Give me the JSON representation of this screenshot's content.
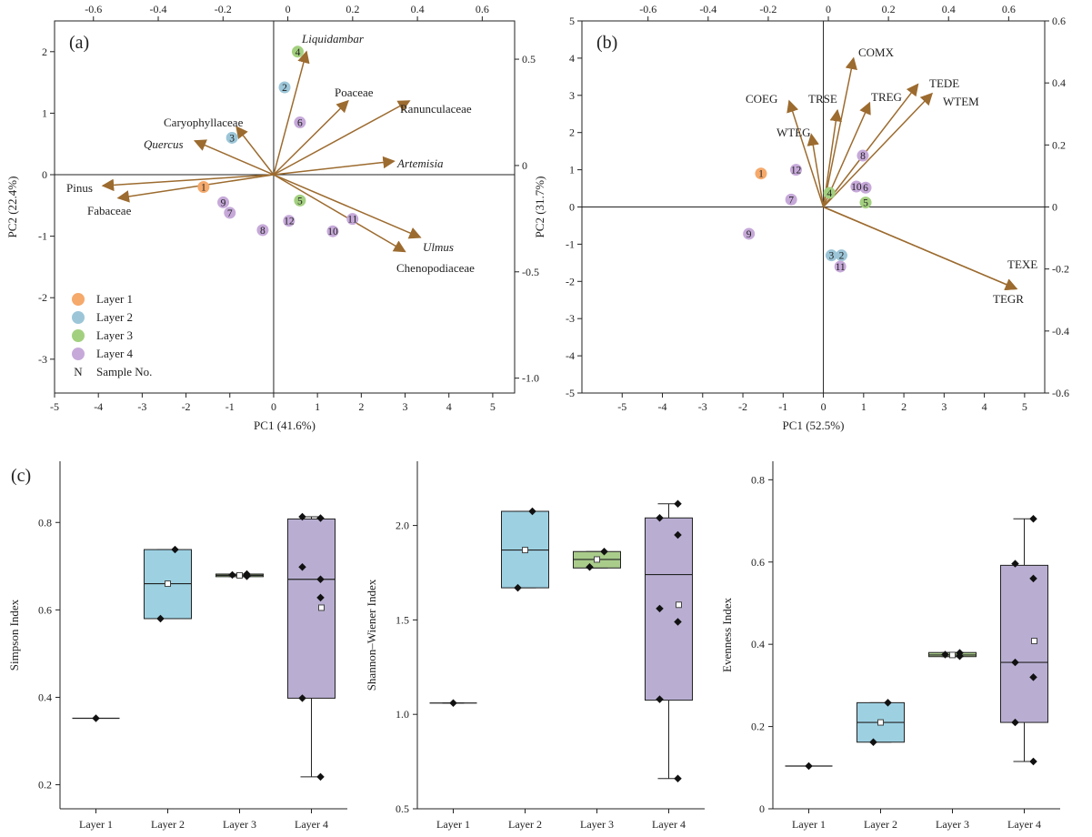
{
  "figure": {
    "colors": {
      "layer1": "#f5a96b",
      "layer2": "#9cc6d8",
      "layer3": "#a3d07f",
      "layer4": "#c6a9d9",
      "arrow": "#9c6b2f",
      "box_layer2": "#9dd1e2",
      "box_layer3": "#a9cc8b",
      "box_layer4": "#b9aed2"
    }
  },
  "chart_data": [
    {
      "type": "scatter",
      "panel_label": "(a)",
      "xlabel": "PC1 (41.6%)",
      "ylabel": "PC2 (22.4%)",
      "xlim": [
        -5,
        5.5
      ],
      "ylim": [
        -3.55,
        2.5
      ],
      "x_ticks": [
        "-5",
        "-4",
        "-3",
        "-2",
        "-1",
        "0",
        "1",
        "2",
        "3",
        "4",
        "5"
      ],
      "y_ticks": [
        "-3",
        "-2",
        "-1",
        "0",
        "1",
        "2"
      ],
      "top_ticks": [
        "-0.6",
        "-0.4",
        "-0.2",
        "0",
        "0.2",
        "0.4",
        "0.6"
      ],
      "right_ticks": [
        "-1.0",
        "-0.5",
        "0",
        "0.5"
      ],
      "legend": {
        "items": [
          "Layer 1",
          "Layer 2",
          "Layer 3",
          "Layer 4"
        ],
        "sample_symbol": "N",
        "sample_label": "Sample No.",
        "position": "bottom-left"
      },
      "points": [
        {
          "label": "1",
          "layer": 1,
          "x": -1.6,
          "y": -0.2
        },
        {
          "label": "2",
          "layer": 2,
          "x": 0.25,
          "y": 1.42
        },
        {
          "label": "3",
          "layer": 2,
          "x": -0.95,
          "y": 0.6
        },
        {
          "label": "4",
          "layer": 3,
          "x": 0.55,
          "y": 2.0
        },
        {
          "label": "5",
          "layer": 3,
          "x": 0.6,
          "y": -0.42
        },
        {
          "label": "6",
          "layer": 4,
          "x": 0.6,
          "y": 0.85
        },
        {
          "label": "7",
          "layer": 4,
          "x": -1.0,
          "y": -0.62
        },
        {
          "label": "8",
          "layer": 4,
          "x": -0.25,
          "y": -0.9
        },
        {
          "label": "9",
          "layer": 4,
          "x": -1.15,
          "y": -0.45
        },
        {
          "label": "10",
          "layer": 4,
          "x": 1.35,
          "y": -0.92
        },
        {
          "label": "11",
          "layer": 4,
          "x": 1.8,
          "y": -0.72
        },
        {
          "label": "12",
          "layer": 4,
          "x": 0.35,
          "y": -0.75
        }
      ],
      "loadings": [
        {
          "label": "Liquidambar",
          "italic": true,
          "x": 0.75,
          "y": 2.0
        },
        {
          "label": "Poaceae",
          "italic": false,
          "x": 1.7,
          "y": 1.2
        },
        {
          "label": "Ranunculaceae",
          "italic": false,
          "x": 3.1,
          "y": 1.2
        },
        {
          "label": "Caryophyllaceae",
          "italic": false,
          "x": -0.85,
          "y": 0.78
        },
        {
          "label": "Quercus",
          "italic": true,
          "x": -1.8,
          "y": 0.55
        },
        {
          "label": "Artemisia",
          "italic": true,
          "x": 2.75,
          "y": 0.22
        },
        {
          "label": "Pinus",
          "italic": false,
          "x": -3.9,
          "y": -0.18
        },
        {
          "label": "Fabaceae",
          "italic": false,
          "x": -3.55,
          "y": -0.38
        },
        {
          "label": "Ulmus",
          "italic": true,
          "x": 3.35,
          "y": -1.02
        },
        {
          "label": "Chenopodiaceae",
          "italic": false,
          "x": 3.0,
          "y": -1.25
        }
      ]
    },
    {
      "type": "scatter",
      "panel_label": "(b)",
      "xlabel": "PC1 (52.5%)",
      "ylabel": "PC2 (31.7%)",
      "xlim": [
        -6,
        5.5
      ],
      "ylim": [
        -5,
        5
      ],
      "x_ticks": [
        "-5",
        "-4",
        "-3",
        "-2",
        "-1",
        "0",
        "1",
        "2",
        "3",
        "4",
        "5"
      ],
      "y_ticks": [
        "-5",
        "-4",
        "-3",
        "-2",
        "-1",
        "0",
        "1",
        "2",
        "3",
        "4",
        "5"
      ],
      "top_ticks": [
        "-0.6",
        "-0.4",
        "-0.2",
        "0",
        "0.2",
        "0.4",
        "0.6"
      ],
      "right_ticks": [
        "-0.6",
        "-0.4",
        "-0.2",
        "0",
        "0.2",
        "0.4",
        "0.6"
      ],
      "points": [
        {
          "label": "1",
          "layer": 1,
          "x": -1.55,
          "y": 0.9
        },
        {
          "label": "2",
          "layer": 2,
          "x": 0.45,
          "y": -1.3
        },
        {
          "label": "3",
          "layer": 2,
          "x": 0.2,
          "y": -1.3
        },
        {
          "label": "4",
          "layer": 3,
          "x": 0.15,
          "y": 0.38
        },
        {
          "label": "5",
          "layer": 3,
          "x": 1.05,
          "y": 0.12
        },
        {
          "label": "6",
          "layer": 4,
          "x": 1.05,
          "y": 0.52
        },
        {
          "label": "7",
          "layer": 4,
          "x": -0.8,
          "y": 0.2
        },
        {
          "label": "8",
          "layer": 4,
          "x": 0.98,
          "y": 1.38
        },
        {
          "label": "9",
          "layer": 4,
          "x": -1.85,
          "y": -0.72
        },
        {
          "label": "10",
          "layer": 4,
          "x": 0.82,
          "y": 0.55
        },
        {
          "label": "11",
          "layer": 4,
          "x": 0.42,
          "y": -1.6
        },
        {
          "label": "12",
          "layer": 4,
          "x": -0.68,
          "y": 1.0
        }
      ],
      "loadings": [
        {
          "label": "COMX",
          "italic": false,
          "x": 0.75,
          "y": 4.0
        },
        {
          "label": "TEDE",
          "italic": false,
          "x": 2.35,
          "y": 3.3
        },
        {
          "label": "WTEM",
          "italic": false,
          "x": 2.7,
          "y": 3.05
        },
        {
          "label": "COEG",
          "italic": false,
          "x": -0.85,
          "y": 2.85
        },
        {
          "label": "TRSE",
          "italic": false,
          "x": 0.35,
          "y": 2.6
        },
        {
          "label": "TREG",
          "italic": false,
          "x": 1.15,
          "y": 2.8
        },
        {
          "label": "WTEG",
          "italic": false,
          "x": -0.3,
          "y": 1.95
        },
        {
          "label": "TEXE",
          "italic": false,
          "x": 4.8,
          "y": -2.2
        },
        {
          "label": "TEGR",
          "italic": false,
          "x": 4.8,
          "y": -2.2
        }
      ]
    },
    {
      "type": "box",
      "panel_label": "(c)",
      "ylabel": "Simpson Index",
      "categories": [
        "Layer 1",
        "Layer 2",
        "Layer 3",
        "Layer 4"
      ],
      "ylim": [
        0.145,
        0.94
      ],
      "y_ticks": [
        "0.2",
        "0.4",
        "0.6",
        "0.8"
      ],
      "boxes": [
        {
          "q1": 0.352,
          "median": 0.352,
          "q3": 0.352,
          "whisker_low": 0.352,
          "whisker_high": 0.352,
          "mean": null,
          "points": [
            0.352
          ]
        },
        {
          "q1": 0.58,
          "median": 0.66,
          "q3": 0.738,
          "whisker_low": 0.58,
          "whisker_high": 0.738,
          "mean": 0.66,
          "points": [
            0.738,
            0.58
          ]
        },
        {
          "q1": 0.676,
          "median": 0.679,
          "q3": 0.682,
          "whisker_low": 0.676,
          "whisker_high": 0.682,
          "mean": 0.679,
          "points": [
            0.682,
            0.68,
            0.677
          ]
        },
        {
          "q1": 0.398,
          "median": 0.67,
          "q3": 0.808,
          "whisker_low": 0.218,
          "whisker_high": 0.813,
          "mean": 0.605,
          "points": [
            0.81,
            0.813,
            0.67,
            0.698,
            0.628,
            0.398,
            0.218
          ]
        }
      ]
    },
    {
      "type": "box",
      "panel_label": "",
      "ylabel": "Shannon–Wiener Index",
      "categories": [
        "Layer 1",
        "Layer 2",
        "Layer 3",
        "Layer 4"
      ],
      "ylim": [
        0.5,
        2.34
      ],
      "y_ticks": [
        "0.5",
        "1.0",
        "1.5",
        "2.0"
      ],
      "boxes": [
        {
          "q1": 1.06,
          "median": 1.06,
          "q3": 1.06,
          "whisker_low": 1.06,
          "whisker_high": 1.06,
          "mean": null,
          "points": [
            1.06
          ]
        },
        {
          "q1": 1.67,
          "median": 1.87,
          "q3": 2.075,
          "whisker_low": 1.67,
          "whisker_high": 2.075,
          "mean": 1.87,
          "points": [
            2.075,
            1.67
          ]
        },
        {
          "q1": 1.775,
          "median": 1.82,
          "q3": 1.862,
          "whisker_low": 1.775,
          "whisker_high": 1.862,
          "mean": 1.82,
          "points": [
            1.862,
            1.78
          ]
        },
        {
          "q1": 1.075,
          "median": 1.74,
          "q3": 2.04,
          "whisker_low": 0.66,
          "whisker_high": 2.115,
          "mean": 1.58,
          "points": [
            2.115,
            2.04,
            1.95,
            1.56,
            1.49,
            1.08,
            0.66
          ]
        }
      ]
    },
    {
      "type": "box",
      "panel_label": "",
      "ylabel": "Evenness Index",
      "categories": [
        "Layer 1",
        "Layer 2",
        "Layer 3",
        "Layer 4"
      ],
      "ylim": [
        0.0,
        0.845
      ],
      "y_ticks": [
        "0",
        "0.2",
        "0.4",
        "0.6",
        "0.8"
      ],
      "boxes": [
        {
          "q1": 0.104,
          "median": 0.104,
          "q3": 0.104,
          "whisker_low": 0.104,
          "whisker_high": 0.104,
          "mean": null,
          "points": [
            0.104
          ]
        },
        {
          "q1": 0.162,
          "median": 0.21,
          "q3": 0.258,
          "whisker_low": 0.162,
          "whisker_high": 0.258,
          "mean": 0.21,
          "points": [
            0.258,
            0.162
          ]
        },
        {
          "q1": 0.37,
          "median": 0.374,
          "q3": 0.38,
          "whisker_low": 0.37,
          "whisker_high": 0.38,
          "mean": 0.374,
          "points": [
            0.379,
            0.375,
            0.371
          ]
        },
        {
          "q1": 0.21,
          "median": 0.356,
          "q3": 0.592,
          "whisker_low": 0.115,
          "whisker_high": 0.705,
          "mean": 0.408,
          "points": [
            0.705,
            0.596,
            0.56,
            0.356,
            0.32,
            0.21,
            0.115
          ]
        }
      ]
    }
  ]
}
